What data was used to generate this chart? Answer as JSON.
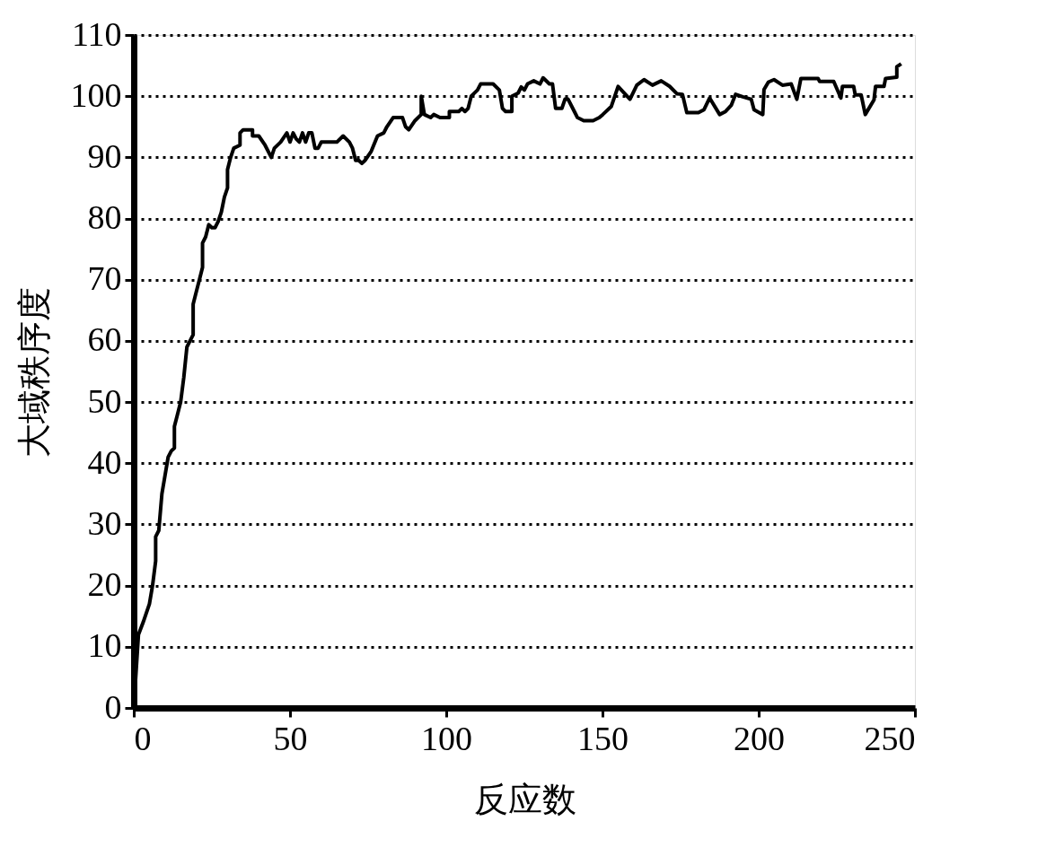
{
  "chart_data": {
    "type": "line",
    "xlabel": "反应数",
    "ylabel": "大域秩序度",
    "x": [
      0,
      1.5,
      3,
      5,
      6,
      7,
      7,
      8,
      9,
      10,
      11,
      12,
      13,
      13,
      14,
      15,
      16,
      17,
      18,
      19,
      19,
      20,
      21,
      22,
      22,
      23,
      24,
      25,
      26,
      27,
      28,
      29,
      30,
      30,
      31,
      32,
      34,
      34,
      35,
      38,
      38,
      40,
      42,
      44,
      45,
      47,
      49,
      50,
      51,
      52,
      53,
      54,
      55,
      56,
      57,
      58,
      59,
      60,
      62,
      65,
      67,
      69,
      70,
      71,
      72,
      73,
      74,
      76,
      78,
      80,
      81,
      83,
      86,
      87,
      88,
      90,
      92,
      92,
      93,
      95,
      96,
      98,
      101,
      101,
      104,
      105,
      106,
      107,
      108,
      110,
      111,
      115,
      117,
      118,
      119,
      121,
      121,
      123,
      124,
      125,
      126,
      128,
      130,
      131,
      133,
      134,
      135,
      137,
      138,
      139,
      141,
      142,
      144,
      147,
      149,
      150.1,
      152.8,
      155,
      158.8,
      161,
      163.3,
      166,
      168.8,
      171.5,
      173.8,
      175.6,
      177,
      180.7,
      182.5,
      184.3,
      187.5,
      189.4,
      191.2,
      192.6,
      194.9,
      197.6,
      198.5,
      201.3,
      201.7,
      203.1,
      204.9,
      207.6,
      210.4,
      212.2,
      213.5,
      219,
      219.5,
      224,
      226.3,
      226.8,
      230.4,
      230.9,
      232.8,
      234.1,
      236.9,
      237.4,
      240.1,
      240.6,
      244.2,
      244.2,
      245.6
    ],
    "values": [
      0,
      12,
      14,
      17,
      20,
      24,
      28,
      29,
      35,
      38,
      41,
      42,
      42.5,
      46,
      48,
      50,
      54,
      59,
      60,
      61,
      66,
      68,
      70,
      72,
      76,
      77,
      79,
      78.5,
      78.5,
      79.5,
      81,
      83.5,
      85,
      88,
      90,
      91.5,
      92,
      94,
      94.5,
      94.5,
      93.5,
      93.5,
      92,
      90,
      91.5,
      92.5,
      94,
      92.5,
      94,
      93,
      92.5,
      94,
      92.5,
      94,
      94,
      91.5,
      91.5,
      92.5,
      92.5,
      92.5,
      93.5,
      92.5,
      91.5,
      89.5,
      89.5,
      89,
      89.5,
      91,
      93.5,
      94,
      95,
      96.5,
      96.5,
      95,
      94.5,
      96,
      97,
      100,
      97,
      96.5,
      97,
      96.5,
      96.5,
      97.5,
      97.5,
      98,
      97.5,
      98,
      100,
      101,
      102,
      102,
      101,
      98,
      97.5,
      97.5,
      100,
      100.5,
      101.5,
      101,
      102,
      102.5,
      102,
      103,
      102,
      102,
      98,
      98,
      99.5,
      99.5,
      97.5,
      96.5,
      96,
      96,
      96.5,
      97,
      98.3,
      101.6,
      99.5,
      101.8,
      102.7,
      101.8,
      102.5,
      101.6,
      100.4,
      100.3,
      97.3,
      97.3,
      97.8,
      99.7,
      97,
      97.5,
      98.5,
      100.3,
      99.9,
      99.5,
      97.8,
      97,
      101.1,
      102.3,
      102.7,
      101.8,
      102,
      99.5,
      102.9,
      102.9,
      102.4,
      102.4,
      99.7,
      101.6,
      101.6,
      100.2,
      100.2,
      97,
      99.4,
      101.6,
      101.6,
      102.9,
      103.1,
      104.8,
      105.3
    ],
    "color": "#000000",
    "xlim": [
      0,
      250
    ],
    "ylim": [
      0,
      110
    ],
    "xticks": [
      0,
      50,
      100,
      150,
      200,
      250
    ],
    "yticks": [
      0,
      10,
      20,
      30,
      40,
      50,
      60,
      70,
      80,
      90,
      100,
      110
    ],
    "grid": "y",
    "line_style": "solid",
    "marker": "none"
  }
}
